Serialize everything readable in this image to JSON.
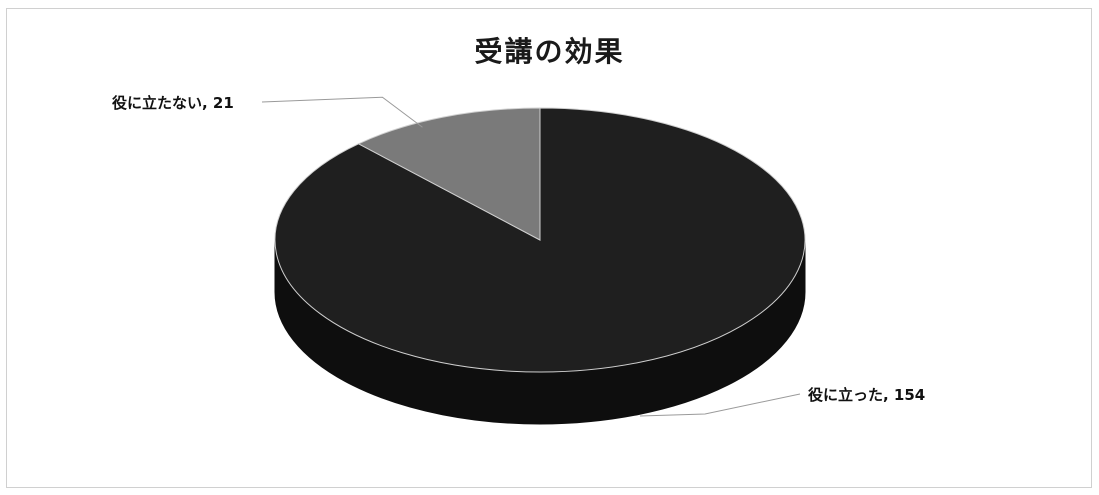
{
  "chart_data": {
    "type": "pie",
    "title": "受講の効果",
    "slices": [
      {
        "label": "役に立った",
        "value": 154,
        "color": "#1f1f1f"
      },
      {
        "label": "役に立たない",
        "value": 21,
        "color": "#7a7a7a"
      }
    ],
    "data_labels": [
      "役に立った, 154",
      "役に立たない, 21"
    ],
    "style": "3d"
  }
}
